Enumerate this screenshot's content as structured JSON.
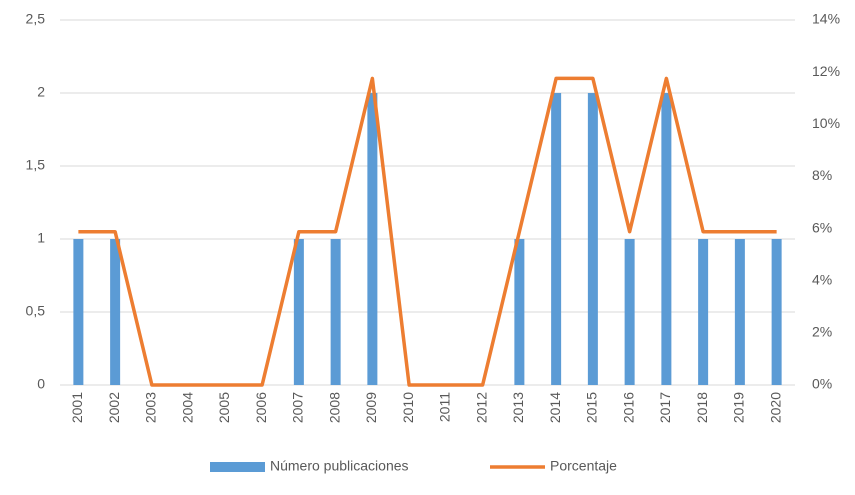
{
  "chart_data": {
    "type": "combo",
    "categories": [
      "2001",
      "2002",
      "2003",
      "2004",
      "2005",
      "2006",
      "2007",
      "2008",
      "2009",
      "2010",
      "2011",
      "2012",
      "2013",
      "2014",
      "2015",
      "2016",
      "2017",
      "2018",
      "2019",
      "2020"
    ],
    "series": [
      {
        "name": "Número publicaciones",
        "type": "bar",
        "color": "#5b9bd5",
        "values": [
          1,
          1,
          0,
          0,
          0,
          0,
          1,
          1,
          2,
          0,
          0,
          0,
          1,
          2,
          2,
          1,
          2,
          1,
          1,
          1
        ]
      },
      {
        "name": "Porcentaje",
        "type": "line",
        "axis": "y2",
        "color": "#ed7d31",
        "values": [
          5.88,
          5.88,
          0,
          0,
          0,
          0,
          5.88,
          5.88,
          11.76,
          0,
          0,
          0,
          5.88,
          11.76,
          11.76,
          5.88,
          11.76,
          5.88,
          5.88,
          5.88
        ]
      }
    ],
    "ylim": [
      0,
      2.5
    ],
    "yticks": [
      0,
      {
        "value": 0.5,
        "label": "0,5"
      },
      1,
      {
        "value": 1.5,
        "label": "1,5"
      },
      2,
      {
        "value": 2.5,
        "label": "2,5"
      }
    ],
    "y2lim": [
      0,
      14
    ],
    "y2ticks": [
      {
        "value": 0,
        "label": "0%"
      },
      {
        "value": 2,
        "label": "2%"
      },
      {
        "value": 4,
        "label": "4%"
      },
      {
        "value": 6,
        "label": "6%"
      },
      {
        "value": 8,
        "label": "8%"
      },
      {
        "value": 10,
        "label": "10%"
      },
      {
        "value": 12,
        "label": "12%"
      },
      {
        "value": 14,
        "label": "14%"
      }
    ],
    "grid": true,
    "legend": "bottom"
  }
}
